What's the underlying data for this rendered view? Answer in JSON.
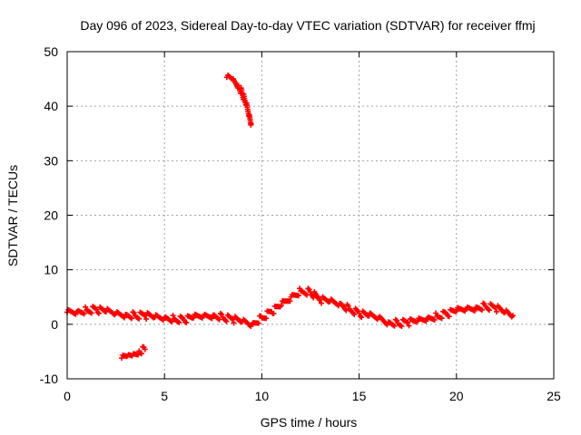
{
  "chart_data": {
    "type": "scatter",
    "title": "Day 096 of 2023, Sidereal Day-to-day VTEC variation (SDTVAR) for receiver ffmj",
    "xlabel": "GPS time / hours",
    "ylabel": "SDTVAR / TECUs",
    "xlim": [
      0,
      25
    ],
    "ylim": [
      -10,
      50
    ],
    "xticks": [
      0,
      5,
      10,
      15,
      20,
      25
    ],
    "yticks": [
      -10,
      0,
      10,
      20,
      30,
      40,
      50
    ],
    "grid": true,
    "point_color": "#ff0000",
    "series": [
      {
        "name": "main-trace",
        "points": [
          [
            0.0,
            2.2
          ],
          [
            0.5,
            2.3
          ],
          [
            1.0,
            2.6
          ],
          [
            1.5,
            2.7
          ],
          [
            2.0,
            2.3
          ],
          [
            2.5,
            2.0
          ],
          [
            3.0,
            1.8
          ],
          [
            3.5,
            1.6
          ],
          [
            4.0,
            1.6
          ],
          [
            4.5,
            1.3
          ],
          [
            5.0,
            1.2
          ],
          [
            5.5,
            1.0
          ],
          [
            6.0,
            0.8
          ],
          [
            6.5,
            1.2
          ],
          [
            7.0,
            1.5
          ],
          [
            7.5,
            1.7
          ],
          [
            8.0,
            1.3
          ],
          [
            8.5,
            0.9
          ],
          [
            9.0,
            0.5
          ],
          [
            9.5,
            0.0
          ],
          [
            10.0,
            1.2
          ],
          [
            10.5,
            2.3
          ],
          [
            11.0,
            3.5
          ],
          [
            11.5,
            5.0
          ],
          [
            12.0,
            6.1
          ],
          [
            12.5,
            5.9
          ],
          [
            13.0,
            4.5
          ],
          [
            13.5,
            4.2
          ],
          [
            14.0,
            3.8
          ],
          [
            14.5,
            2.8
          ],
          [
            15.0,
            2.0
          ],
          [
            15.5,
            1.5
          ],
          [
            16.0,
            1.2
          ],
          [
            16.5,
            0.4
          ],
          [
            17.0,
            0.2
          ],
          [
            17.5,
            0.3
          ],
          [
            18.0,
            0.6
          ],
          [
            18.5,
            1.1
          ],
          [
            19.0,
            1.5
          ],
          [
            19.5,
            1.9
          ],
          [
            20.0,
            2.4
          ],
          [
            20.5,
            2.8
          ],
          [
            21.0,
            3.1
          ],
          [
            21.5,
            3.3
          ],
          [
            22.0,
            3.0
          ],
          [
            22.5,
            2.2
          ],
          [
            22.9,
            1.6
          ]
        ]
      },
      {
        "name": "low-arc",
        "points": [
          [
            2.8,
            -6.2
          ],
          [
            3.1,
            -5.8
          ],
          [
            3.4,
            -5.4
          ],
          [
            3.7,
            -4.9
          ],
          [
            4.0,
            -4.6
          ]
        ]
      },
      {
        "name": "high-arc",
        "points": [
          [
            8.2,
            45.3
          ],
          [
            8.5,
            45.0
          ],
          [
            8.8,
            43.8
          ],
          [
            9.0,
            42.3
          ],
          [
            9.2,
            40.2
          ],
          [
            9.35,
            38.3
          ],
          [
            9.45,
            36.8
          ]
        ]
      }
    ]
  }
}
